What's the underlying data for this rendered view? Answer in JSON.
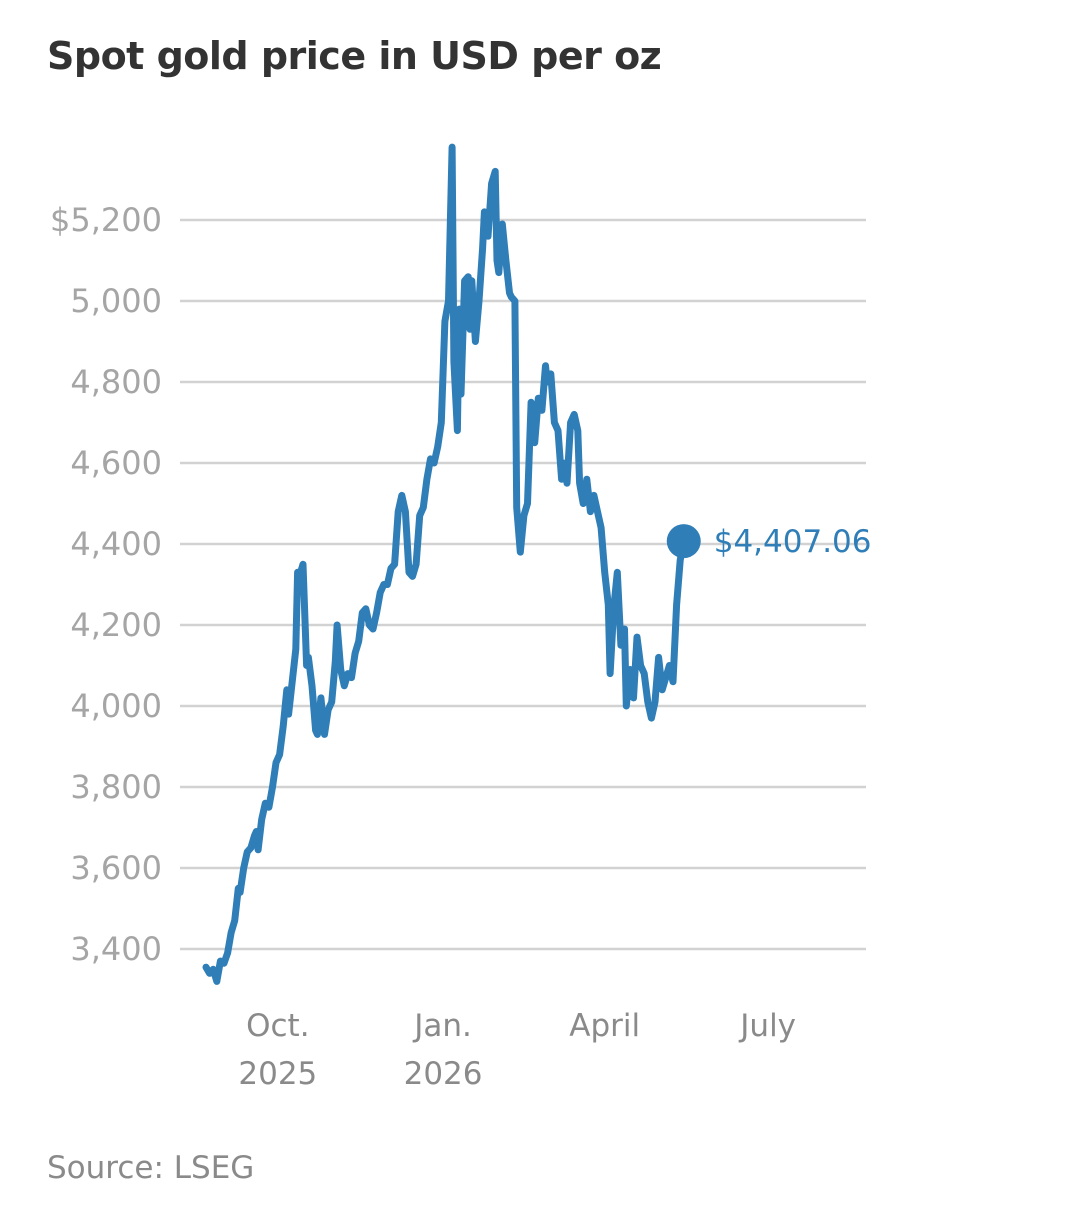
{
  "title": "Spot gold price in USD per oz",
  "source": "Source: LSEG",
  "colors": {
    "line": "#2f7eb7",
    "grid": "#d2d2d2",
    "axis_text": "#a5a5a5",
    "x_text": "#8a8a8a",
    "title": "#333333"
  },
  "chart_data": {
    "type": "line",
    "title": "Spot gold price in USD per oz",
    "xlabel": "",
    "ylabel": "",
    "ylim": [
      3300,
      5400
    ],
    "xlim": [
      "2025-08-22",
      "2026-08-10"
    ],
    "yticks": [
      {
        "value": 3400,
        "label": "3,400"
      },
      {
        "value": 3600,
        "label": "3,600"
      },
      {
        "value": 3800,
        "label": "3,800"
      },
      {
        "value": 4000,
        "label": "4,000"
      },
      {
        "value": 4200,
        "label": "4,200"
      },
      {
        "value": 4400,
        "label": "4,400"
      },
      {
        "value": 4600,
        "label": "4,600"
      },
      {
        "value": 4800,
        "label": "4,800"
      },
      {
        "value": 5000,
        "label": "5,000"
      },
      {
        "value": 5200,
        "label": "$5,200"
      }
    ],
    "xticks": [
      {
        "date": "2025-10-01",
        "line1": "Oct.",
        "line2": "2025"
      },
      {
        "date": "2026-01-01",
        "line1": "Jan.",
        "line2": "2026"
      },
      {
        "date": "2026-04-01",
        "line1": "April",
        "line2": ""
      },
      {
        "date": "2026-07-01",
        "line1": "July",
        "line2": ""
      }
    ],
    "grid": true,
    "series": [
      {
        "name": "",
        "end_label": "$4,407.06",
        "points": [
          [
            "2025-08-22",
            3355
          ],
          [
            "2025-08-24",
            3340
          ],
          [
            "2025-08-26",
            3350
          ],
          [
            "2025-08-28",
            3320
          ],
          [
            "2025-08-30",
            3370
          ],
          [
            "2025-09-01",
            3365
          ],
          [
            "2025-09-03",
            3390
          ],
          [
            "2025-09-05",
            3440
          ],
          [
            "2025-09-07",
            3470
          ],
          [
            "2025-09-09",
            3550
          ],
          [
            "2025-09-10",
            3540
          ],
          [
            "2025-09-12",
            3600
          ],
          [
            "2025-09-14",
            3640
          ],
          [
            "2025-09-16",
            3650
          ],
          [
            "2025-09-18",
            3680
          ],
          [
            "2025-09-19",
            3690
          ],
          [
            "2025-09-20",
            3645
          ],
          [
            "2025-09-22",
            3720
          ],
          [
            "2025-09-24",
            3760
          ],
          [
            "2025-09-26",
            3750
          ],
          [
            "2025-09-28",
            3800
          ],
          [
            "2025-09-30",
            3860
          ],
          [
            "2025-10-02",
            3880
          ],
          [
            "2025-10-04",
            3950
          ],
          [
            "2025-10-06",
            4040
          ],
          [
            "2025-10-07",
            3980
          ],
          [
            "2025-10-09",
            4060
          ],
          [
            "2025-10-11",
            4140
          ],
          [
            "2025-10-12",
            4330
          ],
          [
            "2025-10-13",
            4320
          ],
          [
            "2025-10-15",
            4350
          ],
          [
            "2025-10-17",
            4100
          ],
          [
            "2025-10-18",
            4120
          ],
          [
            "2025-10-20",
            4050
          ],
          [
            "2025-10-22",
            3940
          ],
          [
            "2025-10-23",
            3930
          ],
          [
            "2025-10-25",
            4020
          ],
          [
            "2025-10-27",
            3930
          ],
          [
            "2025-10-29",
            3990
          ],
          [
            "2025-10-31",
            4010
          ],
          [
            "2025-11-02",
            4110
          ],
          [
            "2025-11-03",
            4200
          ],
          [
            "2025-11-05",
            4090
          ],
          [
            "2025-11-07",
            4050
          ],
          [
            "2025-11-09",
            4080
          ],
          [
            "2025-11-11",
            4070
          ],
          [
            "2025-11-13",
            4130
          ],
          [
            "2025-11-15",
            4160
          ],
          [
            "2025-11-17",
            4230
          ],
          [
            "2025-11-19",
            4240
          ],
          [
            "2025-11-21",
            4200
          ],
          [
            "2025-11-23",
            4190
          ],
          [
            "2025-11-25",
            4230
          ],
          [
            "2025-11-27",
            4280
          ],
          [
            "2025-11-29",
            4300
          ],
          [
            "2025-12-01",
            4300
          ],
          [
            "2025-12-03",
            4340
          ],
          [
            "2025-12-05",
            4350
          ],
          [
            "2025-12-07",
            4480
          ],
          [
            "2025-12-09",
            4520
          ],
          [
            "2025-12-11",
            4480
          ],
          [
            "2025-12-13",
            4330
          ],
          [
            "2025-12-15",
            4320
          ],
          [
            "2025-12-17",
            4350
          ],
          [
            "2025-12-19",
            4470
          ],
          [
            "2025-12-21",
            4490
          ],
          [
            "2025-12-23",
            4560
          ],
          [
            "2025-12-25",
            4610
          ],
          [
            "2025-12-27",
            4600
          ],
          [
            "2025-12-29",
            4640
          ],
          [
            "2025-12-31",
            4700
          ],
          [
            "2026-01-02",
            4950
          ],
          [
            "2026-01-04",
            5000
          ],
          [
            "2026-01-06",
            5380
          ],
          [
            "2026-01-07",
            4850
          ],
          [
            "2026-01-09",
            4680
          ],
          [
            "2026-01-10",
            4980
          ],
          [
            "2026-01-11",
            4770
          ],
          [
            "2026-01-13",
            5050
          ],
          [
            "2026-01-15",
            5060
          ],
          [
            "2026-01-16",
            4930
          ],
          [
            "2026-01-17",
            5050
          ],
          [
            "2026-01-19",
            4900
          ],
          [
            "2026-01-21",
            5000
          ],
          [
            "2026-01-23",
            5130
          ],
          [
            "2026-01-24",
            5220
          ],
          [
            "2026-01-26",
            5160
          ],
          [
            "2026-01-28",
            5290
          ],
          [
            "2026-01-30",
            5320
          ],
          [
            "2026-01-31",
            5100
          ],
          [
            "2026-02-01",
            5070
          ],
          [
            "2026-02-03",
            5190
          ],
          [
            "2026-02-05",
            5100
          ],
          [
            "2026-02-07",
            5020
          ],
          [
            "2026-02-08",
            5010
          ],
          [
            "2026-02-10",
            5000
          ],
          [
            "2026-02-11",
            4490
          ],
          [
            "2026-02-13",
            4380
          ],
          [
            "2026-02-15",
            4470
          ],
          [
            "2026-02-17",
            4500
          ],
          [
            "2026-02-19",
            4750
          ],
          [
            "2026-02-21",
            4650
          ],
          [
            "2026-02-23",
            4760
          ],
          [
            "2026-02-25",
            4730
          ],
          [
            "2026-02-27",
            4840
          ],
          [
            "2026-02-28",
            4800
          ],
          [
            "2026-03-02",
            4820
          ],
          [
            "2026-03-04",
            4700
          ],
          [
            "2026-03-06",
            4680
          ],
          [
            "2026-03-08",
            4560
          ],
          [
            "2026-03-10",
            4600
          ],
          [
            "2026-03-11",
            4550
          ],
          [
            "2026-03-13",
            4700
          ],
          [
            "2026-03-15",
            4720
          ],
          [
            "2026-03-17",
            4680
          ],
          [
            "2026-03-18",
            4550
          ],
          [
            "2026-03-20",
            4500
          ],
          [
            "2026-03-22",
            4560
          ],
          [
            "2026-03-24",
            4480
          ],
          [
            "2026-03-26",
            4520
          ],
          [
            "2026-03-28",
            4480
          ],
          [
            "2026-03-30",
            4440
          ],
          [
            "2026-04-01",
            4330
          ],
          [
            "2026-04-03",
            4250
          ],
          [
            "2026-04-04",
            4080
          ],
          [
            "2026-04-06",
            4240
          ],
          [
            "2026-04-08",
            4330
          ],
          [
            "2026-04-10",
            4150
          ],
          [
            "2026-04-12",
            4190
          ],
          [
            "2026-04-13",
            4000
          ],
          [
            "2026-04-15",
            4090
          ],
          [
            "2026-04-17",
            4020
          ],
          [
            "2026-04-19",
            4170
          ],
          [
            "2026-04-21",
            4100
          ],
          [
            "2026-04-23",
            4080
          ],
          [
            "2026-04-25",
            4010
          ],
          [
            "2026-04-27",
            3970
          ],
          [
            "2026-04-29",
            4010
          ],
          [
            "2026-05-01",
            4120
          ],
          [
            "2026-05-03",
            4040
          ],
          [
            "2026-05-05",
            4070
          ],
          [
            "2026-05-07",
            4100
          ],
          [
            "2026-05-09",
            4060
          ],
          [
            "2026-05-11",
            4250
          ],
          [
            "2026-05-13",
            4360
          ],
          [
            "2026-05-15",
            4407.06
          ]
        ]
      }
    ]
  }
}
